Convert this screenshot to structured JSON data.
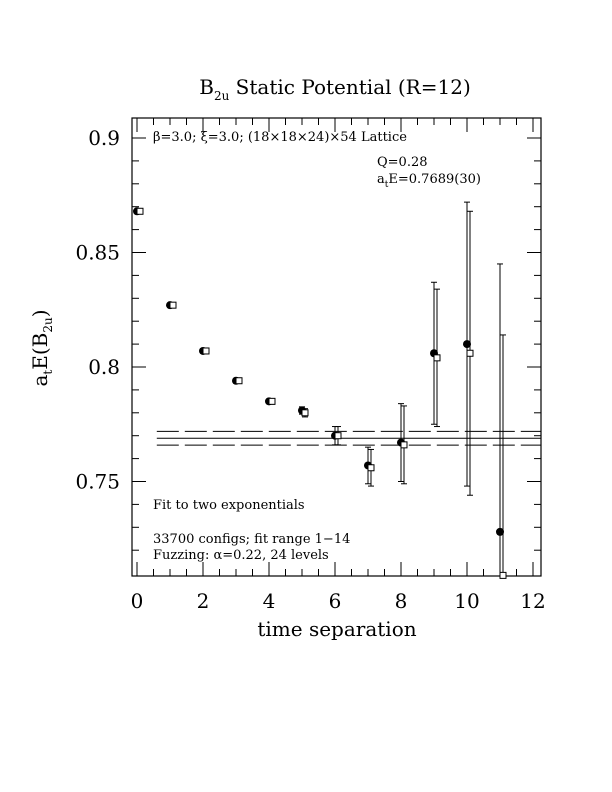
{
  "chart_data": {
    "type": "scatter",
    "title": "B",
    "title_sub": "2u",
    "title_rest": " Static Potential (R=12)",
    "ylabel_main": "a",
    "ylabel_t": "t",
    "ylabel_mid": "E(B",
    "ylabel_sub": "2u",
    "ylabel_end": ")",
    "xlabel": "time separation",
    "xlim": [
      0,
      12
    ],
    "ylim": [
      0.71,
      0.91
    ],
    "xticks": [
      "0",
      "2",
      "4",
      "6",
      "8",
      "10",
      "12"
    ],
    "xtick_values": [
      0,
      2,
      4,
      6,
      8,
      10,
      12
    ],
    "yticks": [
      "0.75",
      "0.8",
      "0.85",
      "0.9"
    ],
    "ytick_values": [
      0.75,
      0.8,
      0.85,
      0.9
    ],
    "lattice_label": "β=3.0; ξ=3.0; (18×18×24)×54 Lattice",
    "q_label": "Q=0.28",
    "fit_a": "a",
    "fit_t": "t",
    "fit_value": "E=0.7689(30)",
    "annotation_fit": "Fit to two exponentials",
    "annotation_configs": "33700 configs; fit range 1−14",
    "annotation_fuzzing": "Fuzzing: α=0.22, 24 levels",
    "fit_line": {
      "value": 0.7689,
      "upper": 0.7719,
      "lower": 0.7659
    },
    "series": [
      {
        "marker": "filled-circle",
        "points": [
          {
            "x": 0,
            "y": 0.868,
            "err": 0.0003
          },
          {
            "x": 1,
            "y": 0.827,
            "err": 0.0005
          },
          {
            "x": 2,
            "y": 0.807,
            "err": 0.0005
          },
          {
            "x": 3,
            "y": 0.794,
            "err": 0.0007
          },
          {
            "x": 4,
            "y": 0.785,
            "err": 0.001
          },
          {
            "x": 5,
            "y": 0.781,
            "err": 0.0016
          },
          {
            "x": 6,
            "y": 0.77,
            "err": 0.004
          },
          {
            "x": 7,
            "y": 0.757,
            "err": 0.008
          },
          {
            "x": 8,
            "y": 0.767,
            "err": 0.017
          },
          {
            "x": 9,
            "y": 0.806,
            "err": 0.031
          },
          {
            "x": 10,
            "y": 0.81,
            "err": 0.062
          },
          {
            "x": 11,
            "y": 0.728,
            "err": 0.117
          }
        ]
      },
      {
        "marker": "open-square",
        "points": [
          {
            "x": 0,
            "y": 0.868,
            "err": 0.0005
          },
          {
            "x": 1,
            "y": 0.827,
            "err": 0.0006
          },
          {
            "x": 2,
            "y": 0.807,
            "err": 0.0007
          },
          {
            "x": 3,
            "y": 0.794,
            "err": 0.0009
          },
          {
            "x": 4,
            "y": 0.785,
            "err": 0.0012
          },
          {
            "x": 5,
            "y": 0.78,
            "err": 0.0018
          },
          {
            "x": 6,
            "y": 0.77,
            "err": 0.004
          },
          {
            "x": 7,
            "y": 0.756,
            "err": 0.008
          },
          {
            "x": 8,
            "y": 0.766,
            "err": 0.017
          },
          {
            "x": 9,
            "y": 0.804,
            "err": 0.03
          },
          {
            "x": 10,
            "y": 0.806,
            "err": 0.062
          },
          {
            "x": 11,
            "y": 0.709,
            "err": 0.105
          }
        ]
      }
    ]
  }
}
